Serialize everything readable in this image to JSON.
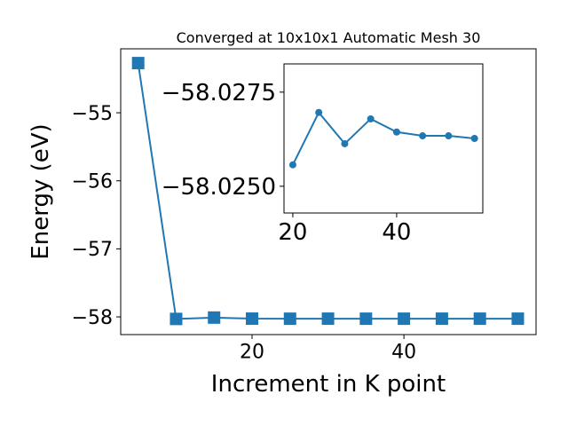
{
  "chart_data": [
    {
      "type": "line",
      "title": "Converged at 10x10x1 Automatic Mesh 30",
      "xlabel": "Increment in K point",
      "ylabel": "Energy (eV)",
      "x": [
        5,
        10,
        15,
        20,
        25,
        30,
        35,
        40,
        45,
        50,
        55
      ],
      "series": [
        {
          "color": "#1f77b4",
          "marker": "square",
          "values": [
            -54.27,
            -58.03,
            -58.01,
            -58.02557,
            -58.02696,
            -58.02613,
            -58.02679,
            -58.02644,
            -58.02634,
            -58.02634,
            -58.02627
          ]
        }
      ],
      "xlim": [
        2.7,
        57.4
      ],
      "ylim": [
        -58.26,
        -54.06
      ],
      "xticks": [
        20,
        40
      ],
      "yticks": [
        {
          "value": -55,
          "label": "−55"
        },
        {
          "value": -56,
          "label": "−56"
        },
        {
          "value": -57,
          "label": "−57"
        },
        {
          "value": -58,
          "label": "−58"
        }
      ]
    },
    {
      "type": "line",
      "x": [
        20,
        25,
        30,
        35,
        40,
        45,
        50,
        55
      ],
      "series": [
        {
          "color": "#1f77b4",
          "marker": "circle",
          "values": [
            -58.02557,
            -58.02696,
            -58.02613,
            -58.02679,
            -58.02644,
            -58.02634,
            -58.02634,
            -58.02627
          ]
        }
      ],
      "xlim": [
        18.3,
        56.6
      ],
      "ylim": [
        -58.02429,
        -58.02825
      ],
      "xticks": [
        20,
        40
      ],
      "yticks": [
        {
          "value": -58.0275,
          "label": "−58.0275"
        },
        {
          "value": -58.025,
          "label": "−58.0250"
        }
      ]
    }
  ]
}
